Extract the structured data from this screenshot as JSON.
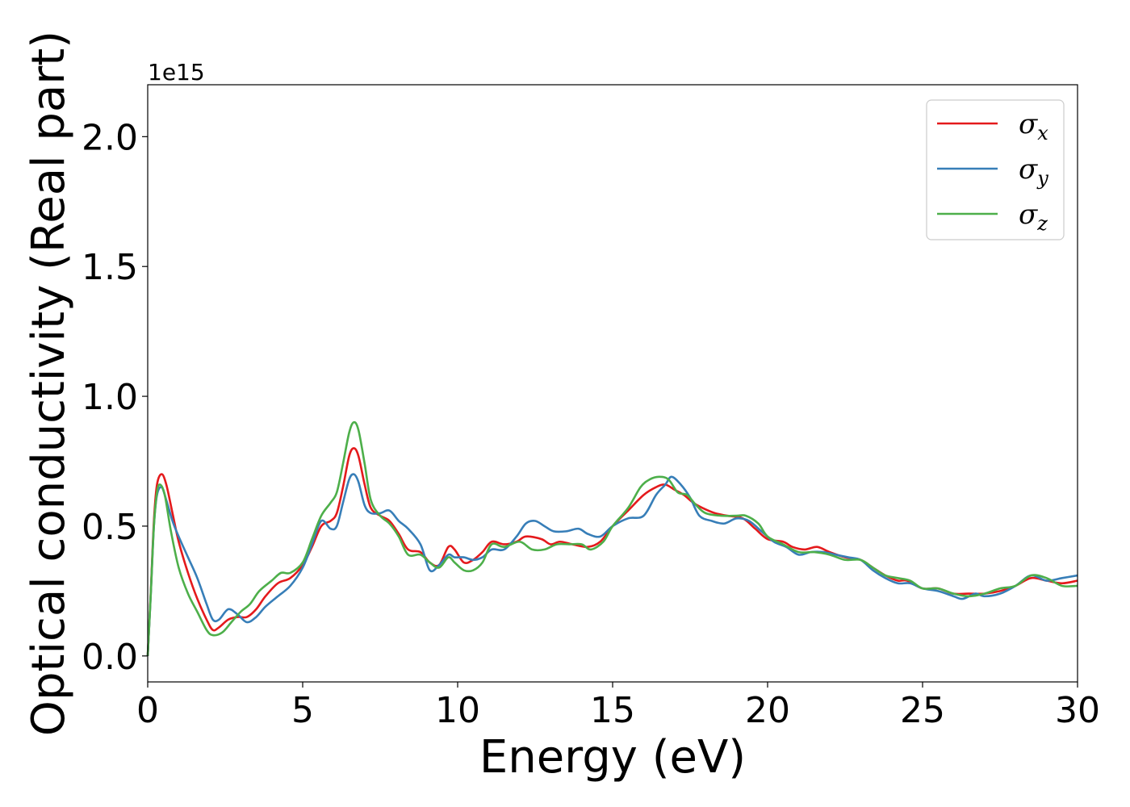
{
  "chart_data": {
    "type": "line",
    "xlabel": "Energy (eV)",
    "ylabel": "Optical conductivity (Real part)",
    "y_offset_label": "1e15",
    "xlim": [
      0,
      30
    ],
    "ylim": [
      -0.1,
      2.2
    ],
    "x_ticks": [
      0,
      5,
      10,
      15,
      20,
      25,
      30
    ],
    "x_tick_labels": [
      "0",
      "5",
      "10",
      "15",
      "20",
      "25",
      "30"
    ],
    "y_ticks": [
      0.0,
      0.5,
      1.0,
      1.5,
      2.0
    ],
    "y_tick_labels": [
      "0.0",
      "0.5",
      "1.0",
      "1.5",
      "2.0"
    ],
    "grid": false,
    "legend_position": "top-right",
    "series": [
      {
        "name": "σx",
        "legend_symbol": "σ",
        "legend_subscript": "x",
        "color": "#e41a1c",
        "points": [
          [
            0,
            0
          ],
          [
            0.1,
            0.25
          ],
          [
            0.2,
            0.52
          ],
          [
            0.3,
            0.66
          ],
          [
            0.45,
            0.7
          ],
          [
            0.6,
            0.66
          ],
          [
            0.8,
            0.55
          ],
          [
            1.0,
            0.44
          ],
          [
            1.3,
            0.32
          ],
          [
            1.6,
            0.22
          ],
          [
            1.9,
            0.14
          ],
          [
            2.1,
            0.1
          ],
          [
            2.3,
            0.11
          ],
          [
            2.6,
            0.14
          ],
          [
            2.9,
            0.15
          ],
          [
            3.2,
            0.15
          ],
          [
            3.5,
            0.18
          ],
          [
            3.8,
            0.23
          ],
          [
            4.2,
            0.28
          ],
          [
            4.6,
            0.3
          ],
          [
            5.0,
            0.35
          ],
          [
            5.3,
            0.42
          ],
          [
            5.6,
            0.5
          ],
          [
            5.9,
            0.52
          ],
          [
            6.1,
            0.55
          ],
          [
            6.3,
            0.65
          ],
          [
            6.5,
            0.77
          ],
          [
            6.65,
            0.8
          ],
          [
            6.8,
            0.77
          ],
          [
            7.0,
            0.66
          ],
          [
            7.2,
            0.57
          ],
          [
            7.5,
            0.54
          ],
          [
            7.8,
            0.52
          ],
          [
            8.1,
            0.47
          ],
          [
            8.4,
            0.41
          ],
          [
            8.8,
            0.4
          ],
          [
            9.1,
            0.36
          ],
          [
            9.4,
            0.35
          ],
          [
            9.7,
            0.42
          ],
          [
            9.9,
            0.41
          ],
          [
            10.2,
            0.36
          ],
          [
            10.5,
            0.37
          ],
          [
            10.8,
            0.4
          ],
          [
            11.1,
            0.44
          ],
          [
            11.5,
            0.43
          ],
          [
            11.9,
            0.44
          ],
          [
            12.2,
            0.46
          ],
          [
            12.7,
            0.45
          ],
          [
            13.0,
            0.43
          ],
          [
            13.3,
            0.44
          ],
          [
            13.7,
            0.43
          ],
          [
            14.2,
            0.42
          ],
          [
            14.6,
            0.44
          ],
          [
            15.0,
            0.5
          ],
          [
            15.5,
            0.56
          ],
          [
            16.0,
            0.62
          ],
          [
            16.4,
            0.65
          ],
          [
            16.7,
            0.66
          ],
          [
            17.0,
            0.64
          ],
          [
            17.3,
            0.62
          ],
          [
            17.6,
            0.59
          ],
          [
            17.9,
            0.57
          ],
          [
            18.3,
            0.55
          ],
          [
            18.7,
            0.54
          ],
          [
            19.2,
            0.53
          ],
          [
            19.6,
            0.49
          ],
          [
            20.0,
            0.45
          ],
          [
            20.5,
            0.44
          ],
          [
            20.8,
            0.42
          ],
          [
            21.2,
            0.41
          ],
          [
            21.6,
            0.42
          ],
          [
            22.0,
            0.4
          ],
          [
            22.5,
            0.38
          ],
          [
            23.0,
            0.37
          ],
          [
            23.4,
            0.34
          ],
          [
            23.8,
            0.31
          ],
          [
            24.2,
            0.29
          ],
          [
            24.5,
            0.29
          ],
          [
            25.0,
            0.26
          ],
          [
            25.5,
            0.26
          ],
          [
            26.0,
            0.24
          ],
          [
            26.5,
            0.24
          ],
          [
            27.0,
            0.24
          ],
          [
            27.5,
            0.25
          ],
          [
            28.0,
            0.27
          ],
          [
            28.5,
            0.3
          ],
          [
            29.0,
            0.29
          ],
          [
            29.5,
            0.28
          ],
          [
            30.0,
            0.29
          ]
        ]
      },
      {
        "name": "σy",
        "legend_symbol": "σ",
        "legend_subscript": "y",
        "color": "#377eb8",
        "points": [
          [
            0,
            0
          ],
          [
            0.1,
            0.24
          ],
          [
            0.2,
            0.5
          ],
          [
            0.3,
            0.62
          ],
          [
            0.45,
            0.65
          ],
          [
            0.6,
            0.6
          ],
          [
            0.8,
            0.52
          ],
          [
            1.0,
            0.46
          ],
          [
            1.3,
            0.38
          ],
          [
            1.6,
            0.3
          ],
          [
            1.9,
            0.2
          ],
          [
            2.1,
            0.14
          ],
          [
            2.3,
            0.14
          ],
          [
            2.6,
            0.18
          ],
          [
            2.9,
            0.16
          ],
          [
            3.2,
            0.13
          ],
          [
            3.5,
            0.15
          ],
          [
            3.8,
            0.19
          ],
          [
            4.2,
            0.23
          ],
          [
            4.6,
            0.27
          ],
          [
            5.0,
            0.34
          ],
          [
            5.3,
            0.43
          ],
          [
            5.6,
            0.52
          ],
          [
            5.9,
            0.49
          ],
          [
            6.1,
            0.5
          ],
          [
            6.3,
            0.59
          ],
          [
            6.5,
            0.68
          ],
          [
            6.65,
            0.7
          ],
          [
            6.8,
            0.67
          ],
          [
            7.0,
            0.58
          ],
          [
            7.2,
            0.55
          ],
          [
            7.5,
            0.55
          ],
          [
            7.8,
            0.56
          ],
          [
            8.1,
            0.52
          ],
          [
            8.4,
            0.49
          ],
          [
            8.8,
            0.43
          ],
          [
            9.1,
            0.33
          ],
          [
            9.4,
            0.35
          ],
          [
            9.7,
            0.39
          ],
          [
            9.9,
            0.38
          ],
          [
            10.2,
            0.38
          ],
          [
            10.5,
            0.37
          ],
          [
            10.8,
            0.38
          ],
          [
            11.1,
            0.41
          ],
          [
            11.5,
            0.41
          ],
          [
            11.9,
            0.46
          ],
          [
            12.2,
            0.51
          ],
          [
            12.5,
            0.52
          ],
          [
            12.8,
            0.5
          ],
          [
            13.1,
            0.48
          ],
          [
            13.5,
            0.48
          ],
          [
            13.9,
            0.49
          ],
          [
            14.2,
            0.47
          ],
          [
            14.6,
            0.46
          ],
          [
            15.0,
            0.5
          ],
          [
            15.5,
            0.53
          ],
          [
            16.0,
            0.54
          ],
          [
            16.4,
            0.62
          ],
          [
            16.7,
            0.66
          ],
          [
            16.9,
            0.69
          ],
          [
            17.2,
            0.66
          ],
          [
            17.5,
            0.61
          ],
          [
            17.8,
            0.54
          ],
          [
            18.2,
            0.52
          ],
          [
            18.6,
            0.51
          ],
          [
            19.0,
            0.53
          ],
          [
            19.4,
            0.52
          ],
          [
            19.8,
            0.48
          ],
          [
            20.2,
            0.44
          ],
          [
            20.6,
            0.42
          ],
          [
            21.0,
            0.39
          ],
          [
            21.4,
            0.4
          ],
          [
            21.8,
            0.4
          ],
          [
            22.2,
            0.39
          ],
          [
            22.6,
            0.38
          ],
          [
            23.0,
            0.37
          ],
          [
            23.4,
            0.33
          ],
          [
            23.8,
            0.3
          ],
          [
            24.2,
            0.28
          ],
          [
            24.6,
            0.28
          ],
          [
            25.0,
            0.26
          ],
          [
            25.5,
            0.25
          ],
          [
            26.0,
            0.23
          ],
          [
            26.3,
            0.22
          ],
          [
            26.7,
            0.24
          ],
          [
            27.0,
            0.23
          ],
          [
            27.5,
            0.24
          ],
          [
            28.0,
            0.27
          ],
          [
            28.5,
            0.31
          ],
          [
            29.0,
            0.29
          ],
          [
            29.5,
            0.3
          ],
          [
            30.0,
            0.31
          ]
        ]
      },
      {
        "name": "σz",
        "legend_symbol": "σ",
        "legend_subscript": "z",
        "color": "#4daf4a",
        "points": [
          [
            0,
            0
          ],
          [
            0.1,
            0.24
          ],
          [
            0.2,
            0.5
          ],
          [
            0.3,
            0.63
          ],
          [
            0.4,
            0.66
          ],
          [
            0.55,
            0.62
          ],
          [
            0.75,
            0.48
          ],
          [
            1.0,
            0.34
          ],
          [
            1.3,
            0.24
          ],
          [
            1.6,
            0.17
          ],
          [
            1.9,
            0.1
          ],
          [
            2.1,
            0.08
          ],
          [
            2.4,
            0.09
          ],
          [
            2.7,
            0.13
          ],
          [
            3.0,
            0.17
          ],
          [
            3.3,
            0.2
          ],
          [
            3.6,
            0.25
          ],
          [
            4.0,
            0.29
          ],
          [
            4.3,
            0.32
          ],
          [
            4.6,
            0.32
          ],
          [
            5.0,
            0.36
          ],
          [
            5.3,
            0.45
          ],
          [
            5.6,
            0.54
          ],
          [
            5.9,
            0.59
          ],
          [
            6.1,
            0.63
          ],
          [
            6.3,
            0.74
          ],
          [
            6.5,
            0.86
          ],
          [
            6.65,
            0.9
          ],
          [
            6.8,
            0.87
          ],
          [
            7.0,
            0.74
          ],
          [
            7.2,
            0.6
          ],
          [
            7.5,
            0.54
          ],
          [
            7.8,
            0.51
          ],
          [
            8.1,
            0.46
          ],
          [
            8.4,
            0.39
          ],
          [
            8.8,
            0.39
          ],
          [
            9.1,
            0.36
          ],
          [
            9.4,
            0.34
          ],
          [
            9.7,
            0.38
          ],
          [
            9.9,
            0.36
          ],
          [
            10.2,
            0.33
          ],
          [
            10.5,
            0.33
          ],
          [
            10.8,
            0.36
          ],
          [
            11.1,
            0.43
          ],
          [
            11.5,
            0.42
          ],
          [
            12.0,
            0.44
          ],
          [
            12.4,
            0.41
          ],
          [
            12.8,
            0.41
          ],
          [
            13.2,
            0.43
          ],
          [
            13.6,
            0.43
          ],
          [
            14.0,
            0.43
          ],
          [
            14.3,
            0.41
          ],
          [
            14.7,
            0.44
          ],
          [
            15.0,
            0.5
          ],
          [
            15.5,
            0.57
          ],
          [
            15.9,
            0.65
          ],
          [
            16.2,
            0.68
          ],
          [
            16.5,
            0.69
          ],
          [
            16.8,
            0.68
          ],
          [
            17.1,
            0.63
          ],
          [
            17.4,
            0.62
          ],
          [
            17.7,
            0.58
          ],
          [
            18.0,
            0.55
          ],
          [
            18.5,
            0.54
          ],
          [
            19.0,
            0.54
          ],
          [
            19.3,
            0.54
          ],
          [
            19.7,
            0.51
          ],
          [
            20.0,
            0.46
          ],
          [
            20.5,
            0.43
          ],
          [
            21.0,
            0.4
          ],
          [
            21.5,
            0.4
          ],
          [
            22.0,
            0.39
          ],
          [
            22.5,
            0.37
          ],
          [
            23.0,
            0.37
          ],
          [
            23.4,
            0.34
          ],
          [
            23.8,
            0.31
          ],
          [
            24.2,
            0.3
          ],
          [
            24.6,
            0.29
          ],
          [
            25.0,
            0.26
          ],
          [
            25.5,
            0.26
          ],
          [
            26.0,
            0.24
          ],
          [
            26.5,
            0.23
          ],
          [
            27.0,
            0.24
          ],
          [
            27.5,
            0.26
          ],
          [
            28.0,
            0.27
          ],
          [
            28.5,
            0.31
          ],
          [
            29.0,
            0.3
          ],
          [
            29.5,
            0.27
          ],
          [
            30.0,
            0.27
          ]
        ]
      }
    ]
  }
}
